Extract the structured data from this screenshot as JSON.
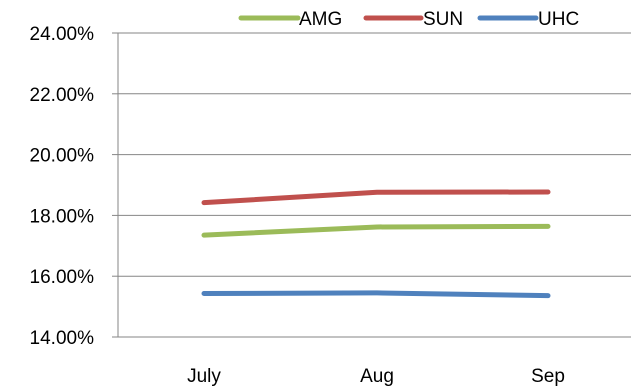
{
  "chart_data": {
    "type": "line",
    "title": "",
    "xlabel": "",
    "ylabel": "",
    "categories": [
      "July",
      "Aug",
      "Sep"
    ],
    "ylim": [
      0.14,
      0.24
    ],
    "yticks": [
      "14.00%",
      "16.00%",
      "18.00%",
      "20.00%",
      "22.00%",
      "24.00%"
    ],
    "grid": true,
    "legend_position": "top",
    "series": [
      {
        "name": "AMG",
        "color": "#9BBB59",
        "values": [
          0.1735,
          0.1762,
          0.1764
        ]
      },
      {
        "name": "SUN",
        "color": "#C0504D",
        "values": [
          0.1842,
          0.1876,
          0.1877
        ]
      },
      {
        "name": "UHC",
        "color": "#4F81BD",
        "values": [
          0.1543,
          0.1545,
          0.1536
        ]
      }
    ]
  }
}
